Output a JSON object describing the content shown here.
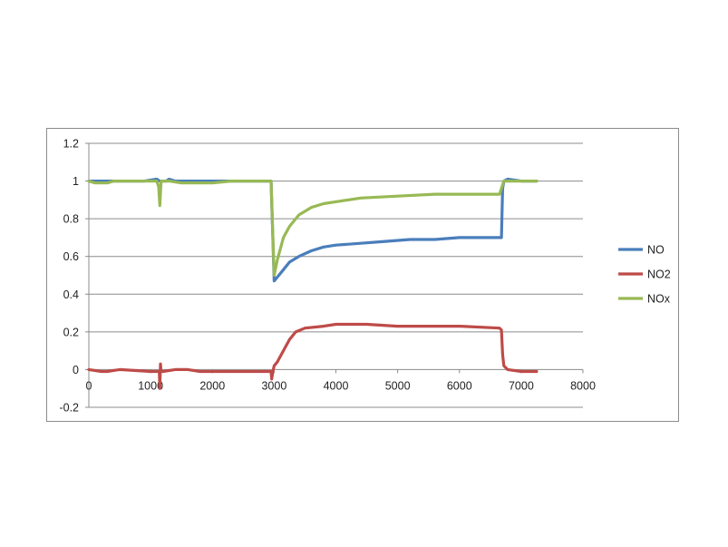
{
  "chart_data": {
    "type": "line",
    "title": "",
    "xlabel": "",
    "ylabel": "",
    "xlim": [
      0,
      8000
    ],
    "ylim": [
      -0.2,
      1.2
    ],
    "x_ticks": [
      0,
      1000,
      2000,
      3000,
      4000,
      5000,
      6000,
      7000,
      8000
    ],
    "y_ticks": [
      -0.2,
      0,
      0.2,
      0.4,
      0.6,
      0.8,
      1,
      1.2
    ],
    "x_tick_labels": [
      "0",
      "1000",
      "2000",
      "3000",
      "4000",
      "5000",
      "6000",
      "7000",
      "8000"
    ],
    "y_tick_labels": [
      "-0.2",
      "0",
      "0.2",
      "0.4",
      "0.6",
      "0.8",
      "1",
      "1.2"
    ],
    "grid": "horizontal",
    "legend_position": "right",
    "series": [
      {
        "name": "NO",
        "color": "#4a7ebb",
        "points": [
          [
            0,
            1.0
          ],
          [
            600,
            1.0
          ],
          [
            900,
            1.0
          ],
          [
            1100,
            1.01
          ],
          [
            1150,
            1.0
          ],
          [
            1250,
            1.0
          ],
          [
            1300,
            1.01
          ],
          [
            1400,
            1.0
          ],
          [
            2000,
            1.0
          ],
          [
            2950,
            1.0
          ],
          [
            3000,
            0.47
          ],
          [
            3050,
            0.49
          ],
          [
            3150,
            0.53
          ],
          [
            3250,
            0.57
          ],
          [
            3400,
            0.6
          ],
          [
            3600,
            0.63
          ],
          [
            3800,
            0.65
          ],
          [
            4000,
            0.66
          ],
          [
            4400,
            0.67
          ],
          [
            4800,
            0.68
          ],
          [
            5200,
            0.69
          ],
          [
            5600,
            0.69
          ],
          [
            6000,
            0.7
          ],
          [
            6400,
            0.7
          ],
          [
            6680,
            0.7
          ],
          [
            6700,
            0.96
          ],
          [
            6720,
            1.0
          ],
          [
            6780,
            1.01
          ],
          [
            7000,
            1.0
          ],
          [
            7250,
            1.0
          ]
        ]
      },
      {
        "name": "NO2",
        "color": "#be4b48",
        "points": [
          [
            0,
            0.0
          ],
          [
            200,
            -0.01
          ],
          [
            300,
            -0.01
          ],
          [
            500,
            0.0
          ],
          [
            1000,
            -0.01
          ],
          [
            1140,
            -0.01
          ],
          [
            1150,
            -0.1
          ],
          [
            1160,
            0.03
          ],
          [
            1170,
            -0.01
          ],
          [
            1200,
            -0.01
          ],
          [
            1400,
            0.0
          ],
          [
            1600,
            0.0
          ],
          [
            1800,
            -0.01
          ],
          [
            2900,
            -0.01
          ],
          [
            2950,
            -0.01
          ],
          [
            2960,
            -0.05
          ],
          [
            2980,
            -0.01
          ],
          [
            3000,
            0.02
          ],
          [
            3050,
            0.04
          ],
          [
            3150,
            0.1
          ],
          [
            3250,
            0.16
          ],
          [
            3350,
            0.2
          ],
          [
            3500,
            0.22
          ],
          [
            3800,
            0.23
          ],
          [
            4000,
            0.24
          ],
          [
            4500,
            0.24
          ],
          [
            5000,
            0.23
          ],
          [
            6000,
            0.23
          ],
          [
            6650,
            0.22
          ],
          [
            6680,
            0.21
          ],
          [
            6700,
            0.08
          ],
          [
            6720,
            0.02
          ],
          [
            6780,
            0.0
          ],
          [
            7000,
            -0.01
          ],
          [
            7250,
            -0.01
          ]
        ]
      },
      {
        "name": "NOx",
        "color": "#98b954",
        "points": [
          [
            0,
            1.0
          ],
          [
            100,
            0.99
          ],
          [
            300,
            0.99
          ],
          [
            400,
            1.0
          ],
          [
            800,
            1.0
          ],
          [
            1000,
            1.0
          ],
          [
            1100,
            1.0
          ],
          [
            1130,
            0.97
          ],
          [
            1150,
            0.87
          ],
          [
            1170,
            1.0
          ],
          [
            1300,
            1.0
          ],
          [
            1500,
            0.99
          ],
          [
            2000,
            0.99
          ],
          [
            2300,
            1.0
          ],
          [
            2950,
            1.0
          ],
          [
            3000,
            0.5
          ],
          [
            3050,
            0.58
          ],
          [
            3150,
            0.7
          ],
          [
            3250,
            0.76
          ],
          [
            3400,
            0.82
          ],
          [
            3600,
            0.86
          ],
          [
            3800,
            0.88
          ],
          [
            4000,
            0.89
          ],
          [
            4400,
            0.91
          ],
          [
            5000,
            0.92
          ],
          [
            5600,
            0.93
          ],
          [
            6000,
            0.93
          ],
          [
            6500,
            0.93
          ],
          [
            6650,
            0.93
          ],
          [
            6700,
            0.98
          ],
          [
            6720,
            1.0
          ],
          [
            7000,
            1.0
          ],
          [
            7250,
            1.0
          ]
        ]
      }
    ]
  }
}
